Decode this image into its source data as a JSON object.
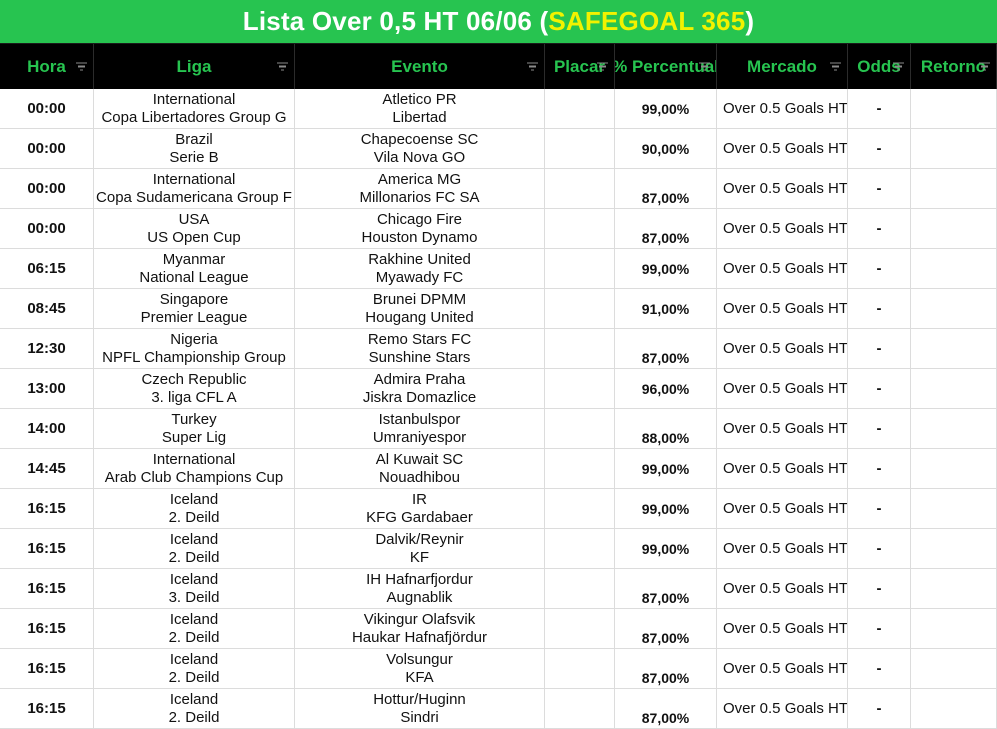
{
  "title": {
    "prefix": "Lista Over 0,5 HT 06/06 (",
    "brand": "SAFEGOAL 365",
    "suffix": ")"
  },
  "headers": {
    "hora": "Hora",
    "liga": "Liga",
    "evento": "Evento",
    "placar": "Placar",
    "percentual": "% Percentual",
    "mercado": "Mercado",
    "odds": "Odds",
    "retorno": "Retorno"
  },
  "colors": {
    "accent_green": "#27c450",
    "brand_yellow": "#f2f200",
    "header_bg": "#000000"
  },
  "rows": [
    {
      "hora": "00:00",
      "liga_country": "International",
      "liga_name": "Copa Libertadores Group G",
      "home": "Atletico PR",
      "away": "Libertad",
      "placar": "",
      "percentual": "99,00%",
      "perc_low": false,
      "mercado": "Over 0.5 Goals HT",
      "odds": "-",
      "retorno": ""
    },
    {
      "hora": "00:00",
      "liga_country": "Brazil",
      "liga_name": "Serie B",
      "home": "Chapecoense SC",
      "away": "Vila Nova GO",
      "placar": "",
      "percentual": "90,00%",
      "perc_low": false,
      "mercado": "Over 0.5 Goals HT",
      "odds": "-",
      "retorno": ""
    },
    {
      "hora": "00:00",
      "liga_country": "International",
      "liga_name": "Copa Sudamericana Group F",
      "home": "America MG",
      "away": "Millonarios FC SA",
      "placar": "",
      "percentual": "87,00%",
      "perc_low": true,
      "mercado": "Over 0.5 Goals HT",
      "odds": "-",
      "retorno": ""
    },
    {
      "hora": "00:00",
      "liga_country": "USA",
      "liga_name": "US Open Cup",
      "home": "Chicago Fire",
      "away": "Houston Dynamo",
      "placar": "",
      "percentual": "87,00%",
      "perc_low": true,
      "mercado": "Over 0.5 Goals HT",
      "odds": "-",
      "retorno": ""
    },
    {
      "hora": "06:15",
      "liga_country": "Myanmar",
      "liga_name": "National League",
      "home": "Rakhine United",
      "away": "Myawady FC",
      "placar": "",
      "percentual": "99,00%",
      "perc_low": false,
      "mercado": "Over 0.5 Goals HT",
      "odds": "-",
      "retorno": ""
    },
    {
      "hora": "08:45",
      "liga_country": "Singapore",
      "liga_name": "Premier League",
      "home": "Brunei DPMM",
      "away": "Hougang United",
      "placar": "",
      "percentual": "91,00%",
      "perc_low": false,
      "mercado": "Over 0.5 Goals HT",
      "odds": "-",
      "retorno": ""
    },
    {
      "hora": "12:30",
      "liga_country": "Nigeria",
      "liga_name": "NPFL Championship Group",
      "home": "Remo Stars FC",
      "away": "Sunshine Stars",
      "placar": "",
      "percentual": "87,00%",
      "perc_low": true,
      "mercado": "Over 0.5 Goals HT",
      "odds": "-",
      "retorno": ""
    },
    {
      "hora": "13:00",
      "liga_country": "Czech Republic",
      "liga_name": "3. liga CFL A",
      "home": "Admira Praha",
      "away": "Jiskra Domazlice",
      "placar": "",
      "percentual": "96,00%",
      "perc_low": false,
      "mercado": "Over 0.5 Goals HT",
      "odds": "-",
      "retorno": ""
    },
    {
      "hora": "14:00",
      "liga_country": "Turkey",
      "liga_name": "Super Lig",
      "home": "Istanbulspor",
      "away": "Umraniyespor",
      "placar": "",
      "percentual": "88,00%",
      "perc_low": true,
      "mercado": "Over 0.5 Goals HT",
      "odds": "-",
      "retorno": ""
    },
    {
      "hora": "14:45",
      "liga_country": "International",
      "liga_name": "Arab Club Champions Cup",
      "home": "Al Kuwait SC",
      "away": "Nouadhibou",
      "placar": "",
      "percentual": "99,00%",
      "perc_low": false,
      "mercado": "Over 0.5 Goals HT",
      "odds": "-",
      "retorno": ""
    },
    {
      "hora": "16:15",
      "liga_country": "Iceland",
      "liga_name": "2. Deild",
      "home": "IR",
      "away": "KFG Gardabaer",
      "placar": "",
      "percentual": "99,00%",
      "perc_low": false,
      "mercado": "Over 0.5 Goals HT",
      "odds": "-",
      "retorno": ""
    },
    {
      "hora": "16:15",
      "liga_country": "Iceland",
      "liga_name": "2. Deild",
      "home": "Dalvik/Reynir",
      "away": "KF",
      "placar": "",
      "percentual": "99,00%",
      "perc_low": false,
      "mercado": "Over 0.5 Goals HT",
      "odds": "-",
      "retorno": ""
    },
    {
      "hora": "16:15",
      "liga_country": "Iceland",
      "liga_name": "3. Deild",
      "home": "IH Hafnarfjordur",
      "away": "Augnablik",
      "placar": "",
      "percentual": "87,00%",
      "perc_low": true,
      "mercado": "Over 0.5 Goals HT",
      "odds": "-",
      "retorno": ""
    },
    {
      "hora": "16:15",
      "liga_country": "Iceland",
      "liga_name": "2. Deild",
      "home": "Vikingur Olafsvik",
      "away": "Haukar Hafnafjördur",
      "placar": "",
      "percentual": "87,00%",
      "perc_low": true,
      "mercado": "Over 0.5 Goals HT",
      "odds": "-",
      "retorno": ""
    },
    {
      "hora": "16:15",
      "liga_country": "Iceland",
      "liga_name": "2. Deild",
      "home": "Volsungur",
      "away": "KFA",
      "placar": "",
      "percentual": "87,00%",
      "perc_low": true,
      "mercado": "Over 0.5 Goals HT",
      "odds": "-",
      "retorno": ""
    },
    {
      "hora": "16:15",
      "liga_country": "Iceland",
      "liga_name": "2. Deild",
      "home": "Hottur/Huginn",
      "away": "Sindri",
      "placar": "",
      "percentual": "87,00%",
      "perc_low": true,
      "mercado": "Over 0.5 Goals HT",
      "odds": "-",
      "retorno": ""
    }
  ]
}
